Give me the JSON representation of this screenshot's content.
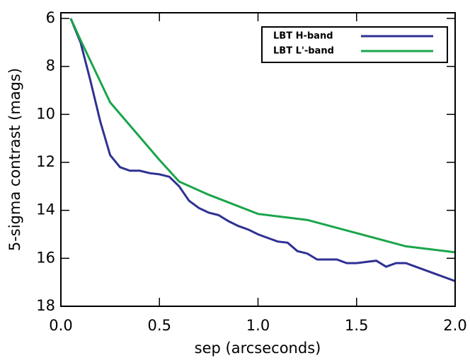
{
  "chart_data": {
    "type": "line",
    "xlabel": "sep (arcseconds)",
    "ylabel": "5-sigma contrast (mags)",
    "xlim": [
      0,
      2
    ],
    "xticks": [
      {
        "value": 0,
        "label": "0.0"
      },
      {
        "value": 0.5,
        "label": "0.5"
      },
      {
        "value": 1,
        "label": "1.0"
      },
      {
        "value": 1.5,
        "label": "1.5"
      },
      {
        "value": 2,
        "label": "2.0"
      }
    ],
    "ylim": [
      6,
      18
    ],
    "yticks": [
      6,
      8,
      10,
      12,
      14,
      16,
      18
    ],
    "y_inverted": true,
    "legend": "upper-right",
    "series": [
      {
        "name": "LBT H-band",
        "color": "#2e3192",
        "x": [
          0.05,
          0.1,
          0.15,
          0.2,
          0.25,
          0.3,
          0.35,
          0.4,
          0.45,
          0.5,
          0.55,
          0.6,
          0.65,
          0.7,
          0.75,
          0.8,
          0.85,
          0.9,
          0.95,
          1.0,
          1.05,
          1.1,
          1.15,
          1.2,
          1.25,
          1.3,
          1.35,
          1.4,
          1.45,
          1.5,
          1.55,
          1.6,
          1.65,
          1.7,
          1.75,
          1.8,
          1.9,
          2.0
        ],
        "values": [
          6.0,
          7.0,
          8.6,
          10.3,
          11.7,
          12.2,
          12.35,
          12.35,
          12.45,
          12.5,
          12.6,
          13.0,
          13.6,
          13.9,
          14.1,
          14.2,
          14.45,
          14.65,
          14.8,
          15.0,
          15.15,
          15.3,
          15.35,
          15.7,
          15.8,
          16.05,
          16.05,
          16.05,
          16.2,
          16.2,
          16.15,
          16.1,
          16.35,
          16.2,
          16.2,
          16.35,
          16.65,
          16.95
        ]
      },
      {
        "name": "LBT L'-band",
        "color": "#1aa54a",
        "x": [
          0.05,
          0.1,
          0.25,
          0.5,
          0.6,
          0.75,
          1.0,
          1.25,
          1.5,
          1.75,
          2.0
        ],
        "values": [
          6.0,
          6.9,
          9.5,
          11.9,
          12.8,
          13.35,
          14.15,
          14.4,
          14.95,
          15.5,
          15.75
        ]
      }
    ]
  }
}
